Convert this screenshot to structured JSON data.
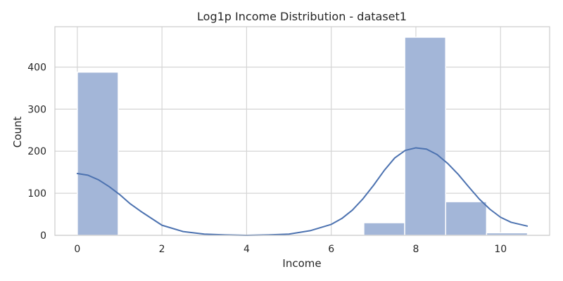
{
  "chart_data": {
    "type": "bar",
    "title": "Log1p Income Distribution - dataset1",
    "xlabel": "Income",
    "ylabel": "Count",
    "xlim": [
      -0.53,
      11.16
    ],
    "ylim": [
      0,
      496
    ],
    "xticks": [
      0,
      2,
      4,
      6,
      8,
      10
    ],
    "yticks": [
      0,
      100,
      200,
      300,
      400
    ],
    "grid": true,
    "legend": "none",
    "colors": {
      "bar_fill": "#a3b6d8",
      "kde_line": "#4c72b0",
      "grid": "#d5d5d5",
      "spine": "#cccccc"
    },
    "bins": [
      {
        "x0": 0.0,
        "x1": 0.967,
        "count": 388
      },
      {
        "x0": 0.967,
        "x1": 1.934,
        "count": 0
      },
      {
        "x0": 1.934,
        "x1": 2.901,
        "count": 0
      },
      {
        "x0": 2.901,
        "x1": 3.868,
        "count": 0
      },
      {
        "x0": 3.868,
        "x1": 4.835,
        "count": 0
      },
      {
        "x0": 4.835,
        "x1": 5.802,
        "count": 0
      },
      {
        "x0": 5.802,
        "x1": 6.769,
        "count": 0
      },
      {
        "x0": 6.769,
        "x1": 7.736,
        "count": 30
      },
      {
        "x0": 7.736,
        "x1": 8.703,
        "count": 471
      },
      {
        "x0": 8.703,
        "x1": 9.67,
        "count": 80
      },
      {
        "x0": 9.67,
        "x1": 10.637,
        "count": 6
      }
    ],
    "kde": {
      "x": [
        0,
        0.25,
        0.5,
        0.75,
        1.0,
        1.25,
        1.5,
        2.0,
        2.5,
        3.0,
        3.5,
        4.0,
        4.5,
        5.0,
        5.5,
        6.0,
        6.25,
        6.5,
        6.75,
        7.0,
        7.25,
        7.5,
        7.75,
        8.0,
        8.25,
        8.5,
        8.75,
        9.0,
        9.25,
        9.5,
        9.75,
        10.0,
        10.25,
        10.63
      ],
      "y": [
        147,
        143,
        132,
        116,
        97,
        75,
        57,
        24,
        9,
        3,
        1,
        0,
        1,
        3,
        11,
        26,
        40,
        60,
        87,
        119,
        154,
        184,
        202,
        208,
        205,
        192,
        171,
        145,
        115,
        86,
        62,
        43,
        31,
        22
      ]
    }
  }
}
